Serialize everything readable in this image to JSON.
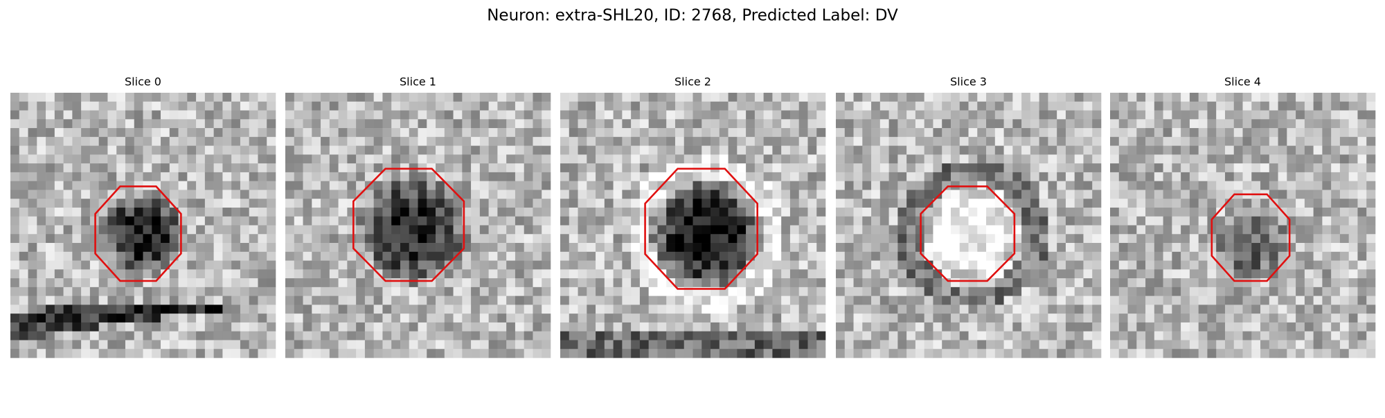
{
  "title": "Neuron: extra-SHL20, ID: 2768, Predicted Label: DV",
  "panels": [
    {
      "title": "Slice 0"
    },
    {
      "title": "Slice 1"
    },
    {
      "title": "Slice 2"
    },
    {
      "title": "Slice 3"
    },
    {
      "title": "Slice 4"
    }
  ]
}
